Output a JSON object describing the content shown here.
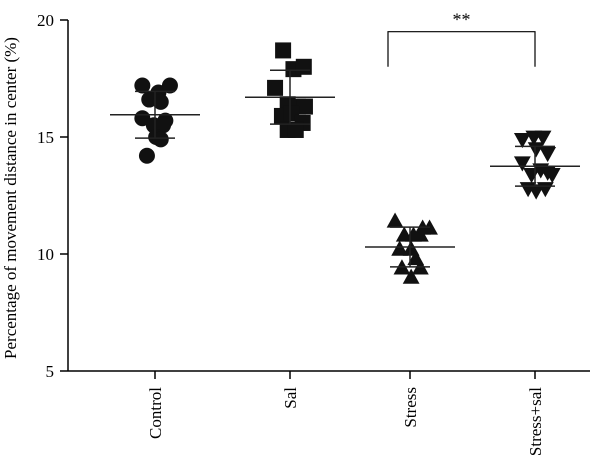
{
  "chart_data": {
    "type": "scatter",
    "title": "",
    "xlabel": "",
    "ylabel": "Percentage of movement distance in center (%)",
    "ylim": [
      5,
      20
    ],
    "yticks": [
      5,
      10,
      15,
      20
    ],
    "grid": false,
    "categories": [
      "Control",
      "Sal",
      "Stress",
      "Stress+sal"
    ],
    "series": [
      {
        "category": "Control",
        "marker": "circle",
        "mean": 15.95,
        "sd": 1.0,
        "points": [
          {
            "offset": -0.55,
            "y": 17.2
          },
          {
            "offset": 0.15,
            "y": 16.9
          },
          {
            "offset": 0.65,
            "y": 17.2
          },
          {
            "offset": -0.25,
            "y": 16.6
          },
          {
            "offset": 0.25,
            "y": 16.5
          },
          {
            "offset": -0.55,
            "y": 15.8
          },
          {
            "offset": 0.45,
            "y": 15.7
          },
          {
            "offset": -0.05,
            "y": 15.5
          },
          {
            "offset": 0.35,
            "y": 15.5
          },
          {
            "offset": 0.05,
            "y": 15.0
          },
          {
            "offset": 0.25,
            "y": 14.9
          },
          {
            "offset": -0.35,
            "y": 14.2
          }
        ]
      },
      {
        "category": "Sal",
        "marker": "square",
        "mean": 16.7,
        "sd": 1.15,
        "points": [
          {
            "offset": -0.3,
            "y": 18.7
          },
          {
            "offset": 0.15,
            "y": 17.9
          },
          {
            "offset": 0.6,
            "y": 18.0
          },
          {
            "offset": -0.65,
            "y": 17.1
          },
          {
            "offset": -0.1,
            "y": 16.4
          },
          {
            "offset": 0.35,
            "y": 16.3
          },
          {
            "offset": 0.65,
            "y": 16.3
          },
          {
            "offset": -0.35,
            "y": 15.9
          },
          {
            "offset": 0.05,
            "y": 16.0
          },
          {
            "offset": 0.55,
            "y": 15.6
          },
          {
            "offset": -0.1,
            "y": 15.3
          },
          {
            "offset": 0.25,
            "y": 15.3
          }
        ]
      },
      {
        "category": "Stress",
        "marker": "triangle-up",
        "mean": 10.3,
        "sd": 0.85,
        "points": [
          {
            "offset": -0.65,
            "y": 11.4
          },
          {
            "offset": 0.55,
            "y": 11.1
          },
          {
            "offset": 0.85,
            "y": 11.1
          },
          {
            "offset": -0.25,
            "y": 10.8
          },
          {
            "offset": 0.15,
            "y": 10.8
          },
          {
            "offset": 0.45,
            "y": 10.8
          },
          {
            "offset": -0.45,
            "y": 10.2
          },
          {
            "offset": 0.05,
            "y": 10.2
          },
          {
            "offset": 0.25,
            "y": 9.8
          },
          {
            "offset": -0.35,
            "y": 9.4
          },
          {
            "offset": 0.45,
            "y": 9.4
          },
          {
            "offset": 0.05,
            "y": 9.0
          }
        ]
      },
      {
        "category": "Stress+sal",
        "marker": "triangle-down",
        "mean": 13.75,
        "sd": 0.85,
        "points": [
          {
            "offset": -0.55,
            "y": 14.9
          },
          {
            "offset": -0.05,
            "y": 15.0
          },
          {
            "offset": 0.35,
            "y": 15.0
          },
          {
            "offset": 0.05,
            "y": 14.5
          },
          {
            "offset": 0.55,
            "y": 14.3
          },
          {
            "offset": -0.55,
            "y": 13.9
          },
          {
            "offset": 0.25,
            "y": 13.6
          },
          {
            "offset": -0.15,
            "y": 13.4
          },
          {
            "offset": 0.55,
            "y": 13.5
          },
          {
            "offset": 0.75,
            "y": 13.4
          },
          {
            "offset": -0.3,
            "y": 12.8
          },
          {
            "offset": 0.05,
            "y": 12.7
          },
          {
            "offset": 0.45,
            "y": 12.8
          }
        ]
      }
    ],
    "annotations": [
      {
        "type": "significance-bracket",
        "from": "Stress",
        "to": "Stress+sal",
        "label": "**",
        "y": 19.5
      }
    ]
  }
}
